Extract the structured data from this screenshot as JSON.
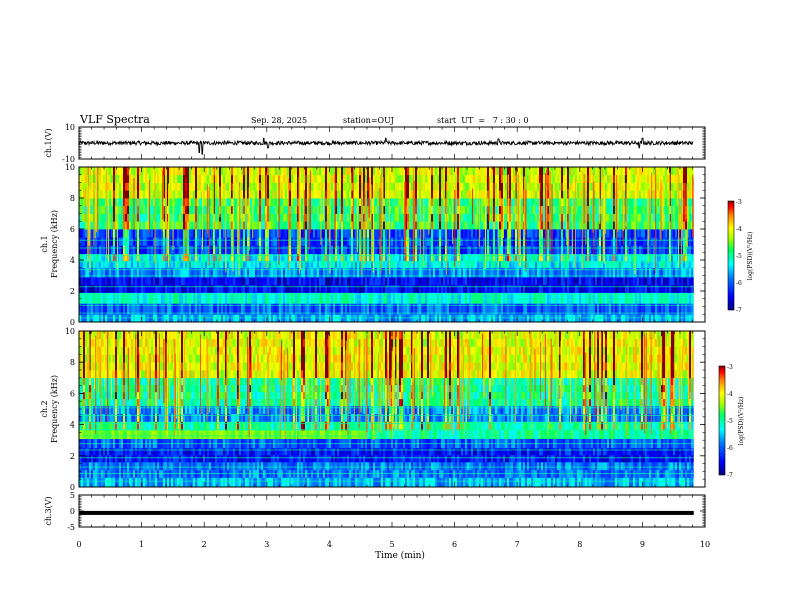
{
  "header": {
    "title": "VLF Spectra",
    "date": "Sep. 28, 2025",
    "station": "station=OUJ",
    "start": "start  UT  =   7 : 30 : 0"
  },
  "colors": {
    "background": "#ffffff",
    "axis": "#000000",
    "colormap": [
      "#00007f",
      "#0000ff",
      "#0080ff",
      "#00ffff",
      "#00ff80",
      "#80ff00",
      "#ffff00",
      "#ff8000",
      "#ff0000",
      "#7f0000"
    ]
  },
  "chart_data": [
    {
      "id": "ch1-waveform",
      "type": "line",
      "ylabel": "ch.1(V)",
      "ylim": [
        -10,
        10
      ],
      "yticks": [
        10,
        -10
      ],
      "xlim": [
        0,
        10
      ],
      "level": 0,
      "noise_amplitude": 1.2,
      "spikes": [
        {
          "t": 1.92,
          "v": -6
        },
        {
          "t": 1.97,
          "v": -7
        },
        {
          "t": 2.95,
          "v": 3
        },
        {
          "t": 3.02,
          "v": -3
        },
        {
          "t": 4.9,
          "v": 3
        },
        {
          "t": 6.7,
          "v": 2.5
        },
        {
          "t": 8.95,
          "v": -3
        },
        {
          "t": 9.0,
          "v": 3
        }
      ],
      "data_end_min": 9.82
    },
    {
      "id": "ch1-spectrogram",
      "type": "heatmap",
      "ylabel_channel": "ch.1",
      "ylabel": "Frequency (kHz)",
      "ylim": [
        0,
        10
      ],
      "yticks": [
        0,
        2,
        4,
        6,
        8,
        10
      ],
      "xlim": [
        0,
        10
      ],
      "data_end_min": 9.82,
      "colorbar": {
        "label": "log(PSD)(V²/Hz)",
        "range": [
          -7,
          -3
        ],
        "ticks": [
          "-3",
          "-4",
          "-5",
          "-6",
          "-7"
        ]
      },
      "bands": [
        {
          "f0": 0.0,
          "f1": 0.5,
          "level": 0.35
        },
        {
          "f0": 0.5,
          "f1": 1.2,
          "level": 0.25
        },
        {
          "f0": 1.2,
          "f1": 1.9,
          "level": 0.45
        },
        {
          "f0": 1.9,
          "f1": 2.9,
          "level": 0.12
        },
        {
          "f0": 2.9,
          "f1": 3.5,
          "level": 0.3
        },
        {
          "f0": 3.5,
          "f1": 4.4,
          "level": 0.42
        },
        {
          "f0": 4.4,
          "f1": 6.0,
          "level": 0.2
        },
        {
          "f0": 6.0,
          "f1": 8.0,
          "level": 0.55
        },
        {
          "f0": 8.0,
          "f1": 10.0,
          "level": 0.7
        }
      ],
      "stripe_lines_khz": [
        0.3,
        0.6,
        1.1,
        1.5,
        1.8,
        2.3,
        3.0,
        3.4,
        3.9,
        4.3,
        4.8,
        5.3
      ],
      "emission_band": {
        "f0": 1.3,
        "f1": 1.7,
        "t0": 7.0,
        "t1": 9.8,
        "level": 0.6
      }
    },
    {
      "id": "ch2-spectrogram",
      "type": "heatmap",
      "ylabel_channel": "ch.2",
      "ylabel": "Frequency (kHz)",
      "ylim": [
        0,
        10
      ],
      "yticks": [
        0,
        2,
        4,
        6,
        8,
        10
      ],
      "xlim": [
        0,
        10
      ],
      "data_end_min": 9.82,
      "colorbar": {
        "label": "log(PSD)(V²/Hz)",
        "range": [
          -7,
          -3
        ],
        "ticks": [
          "-3",
          "-4",
          "-5",
          "-6",
          "-7"
        ]
      },
      "bands": [
        {
          "f0": 0.0,
          "f1": 0.6,
          "level": 0.35
        },
        {
          "f0": 0.6,
          "f1": 1.6,
          "level": 0.28
        },
        {
          "f0": 1.6,
          "f1": 2.5,
          "level": 0.15
        },
        {
          "f0": 2.5,
          "f1": 3.1,
          "level": 0.25
        },
        {
          "f0": 3.1,
          "f1": 4.2,
          "level": 0.5
        },
        {
          "f0": 4.2,
          "f1": 5.2,
          "level": 0.3
        },
        {
          "f0": 5.2,
          "f1": 7.0,
          "level": 0.5
        },
        {
          "f0": 7.0,
          "f1": 10.0,
          "level": 0.72
        }
      ],
      "stripe_lines_khz": [
        0.4,
        0.9,
        1.3,
        1.9,
        2.4,
        2.8,
        3.3,
        3.7,
        4.1,
        4.6,
        5.1
      ],
      "emission_band": {
        "f0": 3.2,
        "f1": 3.8,
        "t0": 0.0,
        "t1": 4.6,
        "level": 0.62
      }
    },
    {
      "id": "ch3-waveform",
      "type": "line",
      "ylabel": "ch.3(V)",
      "ylim": [
        -5,
        5
      ],
      "yticks": [
        5,
        0,
        -5
      ],
      "xlim": [
        0,
        10
      ],
      "level": -0.6,
      "noise_amplitude": 0,
      "spikes": [],
      "data_end_min": 9.82
    }
  ],
  "xaxis": {
    "label": "Time (min)",
    "ticks": [
      "0",
      "1",
      "2",
      "3",
      "4",
      "5",
      "6",
      "7",
      "8",
      "9",
      "10"
    ]
  }
}
